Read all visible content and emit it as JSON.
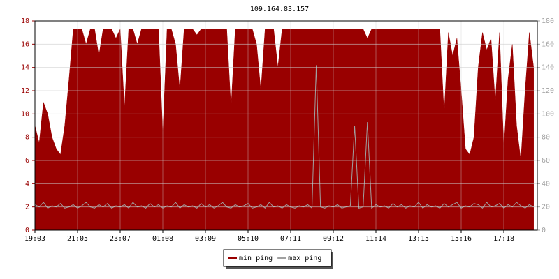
{
  "chart_data": {
    "type": "line",
    "title": "109.164.83.157",
    "categories": [
      "19:03",
      null,
      null,
      null,
      null,
      null,
      null,
      null,
      null,
      null,
      "21:05",
      null,
      null,
      null,
      null,
      null,
      null,
      null,
      null,
      null,
      "23:07",
      null,
      null,
      null,
      null,
      null,
      null,
      null,
      null,
      null,
      "01:08",
      null,
      null,
      null,
      null,
      null,
      null,
      null,
      null,
      null,
      "03:09",
      null,
      null,
      null,
      null,
      null,
      null,
      null,
      null,
      null,
      "05:10",
      null,
      null,
      null,
      null,
      null,
      null,
      null,
      null,
      null,
      "07:11",
      null,
      null,
      null,
      null,
      null,
      null,
      null,
      null,
      null,
      "09:12",
      null,
      null,
      null,
      null,
      null,
      null,
      null,
      null,
      null,
      "11:14",
      null,
      null,
      null,
      null,
      null,
      null,
      null,
      null,
      null,
      "13:15",
      null,
      null,
      null,
      null,
      null,
      null,
      null,
      null,
      null,
      "15:16",
      null,
      null,
      null,
      null,
      null,
      null,
      null,
      null,
      null,
      "17:18",
      null,
      null,
      null,
      null,
      null,
      null,
      null
    ],
    "series": [
      {
        "name": "min ping",
        "color": "#990000",
        "fill": true,
        "values": [
          9,
          7.5,
          11,
          10,
          8,
          7,
          6.5,
          9,
          13,
          17.3,
          17.3,
          17.3,
          16,
          17.3,
          17.3,
          15,
          17.3,
          17.3,
          17.3,
          16.5,
          17.3,
          10.5,
          17.3,
          17.3,
          16,
          17.3,
          17.3,
          17.3,
          17.3,
          17.3,
          8.2,
          17.3,
          17.3,
          16,
          12,
          17.3,
          17.3,
          17.3,
          16.8,
          17.3,
          17.3,
          17.3,
          17.3,
          17.3,
          17.3,
          17.3,
          10.5,
          17.3,
          17.3,
          17.3,
          17.3,
          17.3,
          16,
          12,
          17.3,
          17.3,
          17.3,
          14,
          17.3,
          17.3,
          17.3,
          17.3,
          17.3,
          17.3,
          17.3,
          17.3,
          17.3,
          17.3,
          17.3,
          17.3,
          17.3,
          17.3,
          17.3,
          17.3,
          17.3,
          17.3,
          17.3,
          17.3,
          16.5,
          17.3,
          17.3,
          17.3,
          17.3,
          17.3,
          17.3,
          17.3,
          17.3,
          17.3,
          17.3,
          17.3,
          17.3,
          17.3,
          17.3,
          17.3,
          17.3,
          17.3,
          10,
          17,
          15,
          16.5,
          12,
          7,
          6.5,
          8,
          14,
          17,
          15.5,
          16.5,
          11,
          17,
          7,
          13,
          16,
          9,
          6,
          12,
          17,
          14
        ]
      },
      {
        "name": "max ping",
        "color": "#a0a0a0",
        "axis": "y2",
        "values": [
          22,
          20,
          24,
          19,
          21,
          20,
          23,
          19,
          20,
          22,
          19,
          21,
          24,
          20,
          19,
          22,
          20,
          23,
          19,
          21,
          20,
          22,
          19,
          24,
          20,
          21,
          19,
          23,
          20,
          22,
          19,
          21,
          20,
          24,
          19,
          22,
          20,
          21,
          19,
          23,
          20,
          22,
          19,
          21,
          24,
          20,
          19,
          22,
          20,
          21,
          23,
          19,
          20,
          22,
          19,
          24,
          20,
          21,
          19,
          22,
          20,
          19,
          21,
          20,
          22,
          19,
          142,
          20,
          19,
          21,
          20,
          22,
          19,
          20,
          21,
          90,
          19,
          20,
          93,
          19,
          22,
          20,
          21,
          19,
          23,
          20,
          22,
          19,
          21,
          20,
          24,
          19,
          22,
          20,
          21,
          19,
          23,
          20,
          22,
          24,
          19,
          21,
          20,
          23,
          22,
          19,
          24,
          20,
          21,
          23,
          19,
          22,
          20,
          24,
          21,
          19,
          22,
          20
        ]
      }
    ],
    "ylim": [
      0,
      18
    ],
    "yticks": [
      0,
      2,
      4,
      6,
      8,
      10,
      12,
      14,
      16,
      18
    ],
    "y2lim": [
      0,
      180
    ],
    "y2ticks": [
      0,
      20,
      40,
      60,
      80,
      100,
      120,
      140,
      160,
      180
    ],
    "grid": true,
    "legend": "bottom"
  }
}
